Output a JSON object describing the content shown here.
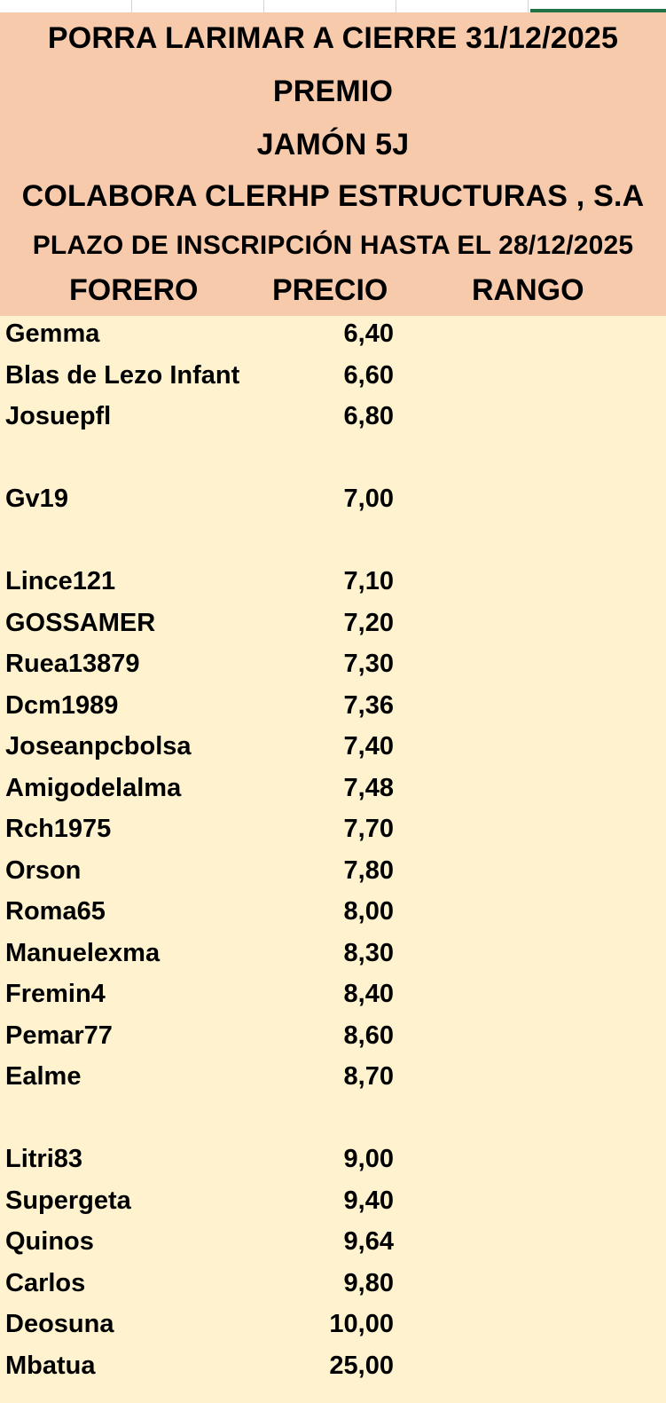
{
  "header": {
    "line1": "PORRA LARIMAR A CIERRE 31/12/2025",
    "line2": "PREMIO",
    "line3": "JAMÓN   5J",
    "line4": "COLABORA CLERHP ESTRUCTURAS , S.A",
    "line5": "PLAZO DE INSCRIPCIÓN HASTA EL 28/12/2025"
  },
  "columns": {
    "forero": "FORERO",
    "precio": "PRECIO",
    "rango": "RANGO"
  },
  "rows": [
    {
      "forero": "Gemma",
      "precio": "6,40",
      "rango": ""
    },
    {
      "forero": "Blas de Lezo Infant",
      "precio": "6,60",
      "rango": ""
    },
    {
      "forero": "Josuepfl",
      "precio": "6,80",
      "rango": ""
    },
    {
      "forero": "",
      "precio": "",
      "rango": ""
    },
    {
      "forero": "Gv19",
      "precio": "7,00",
      "rango": ""
    },
    {
      "forero": "",
      "precio": "",
      "rango": ""
    },
    {
      "forero": "Lince121",
      "precio": "7,10",
      "rango": ""
    },
    {
      "forero": "GOSSAMER",
      "precio": "7,20",
      "rango": ""
    },
    {
      "forero": "Ruea13879",
      "precio": "7,30",
      "rango": ""
    },
    {
      "forero": "Dcm1989",
      "precio": "7,36",
      "rango": ""
    },
    {
      "forero": "Joseanpcbolsa",
      "precio": "7,40",
      "rango": ""
    },
    {
      "forero": "Amigodelalma",
      "precio": "7,48",
      "rango": ""
    },
    {
      "forero": "Rch1975",
      "precio": "7,70",
      "rango": ""
    },
    {
      "forero": "Orson",
      "precio": "7,80",
      "rango": ""
    },
    {
      "forero": "Roma65",
      "precio": "8,00",
      "rango": ""
    },
    {
      "forero": "Manuelexma",
      "precio": "8,30",
      "rango": ""
    },
    {
      "forero": "Fremin4",
      "precio": "8,40",
      "rango": ""
    },
    {
      "forero": "Pemar77",
      "precio": "8,60",
      "rango": ""
    },
    {
      "forero": "Ealme",
      "precio": "8,70",
      "rango": ""
    },
    {
      "forero": "",
      "precio": "",
      "rango": ""
    },
    {
      "forero": "Litri83",
      "precio": "9,00",
      "rango": ""
    },
    {
      "forero": "Supergeta",
      "precio": "9,40",
      "rango": ""
    },
    {
      "forero": "Quinos",
      "precio": "9,64",
      "rango": ""
    },
    {
      "forero": "Carlos",
      "precio": "9,80",
      "rango": ""
    },
    {
      "forero": "Deosuna",
      "precio": "10,00",
      "rango": ""
    },
    {
      "forero": "Mbatua",
      "precio": "25,00",
      "rango": ""
    }
  ],
  "colors": {
    "header_bg": "#f8caac",
    "body_bg": "#fff2cf",
    "active_tab": "#217346"
  }
}
